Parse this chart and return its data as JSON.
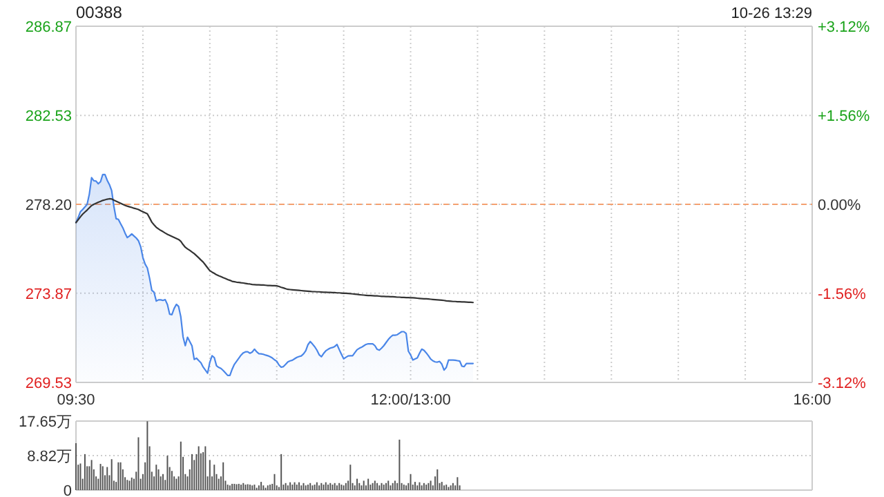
{
  "chart_data": [
    {
      "type": "area",
      "title": "00388",
      "annotations": [
        "10-26 13:29"
      ],
      "categories": [
        "09:30",
        null,
        null,
        null,
        null,
        null,
        null,
        null,
        null,
        null,
        null,
        null,
        null,
        null,
        null,
        null,
        null,
        null,
        null,
        null,
        null,
        null,
        null,
        null,
        null,
        null,
        null,
        null,
        null,
        null,
        null,
        null,
        null,
        null,
        null,
        null,
        null,
        null,
        null,
        null,
        null,
        null,
        null,
        null,
        null,
        null,
        null,
        null,
        null,
        null,
        null,
        null,
        null,
        null,
        null,
        null,
        null,
        null,
        null,
        null,
        null,
        null,
        null,
        null,
        null,
        null,
        null,
        null,
        null,
        null,
        null,
        null,
        null,
        null,
        null,
        null,
        null,
        null,
        null,
        null,
        null,
        null,
        null,
        null,
        null,
        null,
        null,
        null,
        null,
        null,
        null,
        null,
        null,
        null,
        null,
        null,
        null,
        null,
        null,
        null,
        null,
        null,
        null,
        null,
        null,
        null,
        null,
        null,
        null,
        null,
        null,
        null,
        null,
        null,
        null,
        null,
        null,
        null,
        null,
        null,
        null,
        null,
        null,
        null,
        null,
        null,
        null,
        null,
        null,
        null,
        null,
        null,
        null,
        null,
        null,
        null,
        null,
        null,
        null,
        null,
        null,
        null,
        null,
        null,
        null,
        null,
        null,
        null,
        null,
        null,
        "12:00/13:00",
        null,
        null,
        null,
        null,
        null,
        null,
        null,
        null,
        null,
        null,
        null,
        null,
        null,
        null,
        null,
        null,
        null,
        null,
        null,
        null,
        null,
        null,
        null,
        null,
        null,
        null,
        null,
        null,
        null,
        null,
        null,
        null,
        null,
        null,
        null,
        null,
        null,
        null,
        null,
        null,
        null,
        null,
        null,
        null,
        null,
        null,
        null,
        null,
        null,
        null,
        null,
        null,
        null,
        null,
        null,
        null,
        null,
        null,
        null,
        null,
        null,
        null,
        null,
        null,
        null,
        null,
        null,
        null,
        null,
        null,
        null,
        null,
        null,
        null,
        null,
        null,
        null,
        null,
        null,
        null,
        null,
        null,
        null,
        null,
        null,
        null,
        null,
        null,
        null,
        null,
        null,
        null,
        null,
        null,
        null,
        null,
        null,
        null,
        null,
        null,
        null,
        null,
        null,
        null,
        null,
        null,
        null,
        null,
        null,
        null,
        null,
        null,
        null,
        null,
        null,
        null,
        null,
        null,
        null,
        null,
        null,
        null,
        null,
        null,
        null,
        null,
        null,
        null,
        null,
        null,
        null,
        null,
        null,
        null,
        null,
        null,
        null,
        null,
        null,
        null,
        null,
        null,
        null,
        null,
        null,
        null,
        null,
        null,
        null,
        null,
        null,
        null,
        null,
        null,
        null,
        null,
        null,
        null,
        null,
        null,
        null,
        null,
        null,
        null,
        null,
        null,
        null,
        null,
        null,
        null,
        null,
        null,
        null,
        null,
        null,
        null,
        null,
        null,
        null,
        "16:00"
      ],
      "ylim": [
        269.53,
        286.87
      ],
      "yticks": [
        269.53,
        273.87,
        {
          "value": 278.2,
          "label": "278.20"
        },
        282.53,
        286.87
      ],
      "y2lim": [
        -3.12,
        3.12
      ],
      "y2ticks": [
        {
          "value": -3.12,
          "label": "-3.12%"
        },
        {
          "value": -1.56,
          "label": "-1.56%"
        },
        {
          "value": 0,
          "label": "0.00%"
        },
        {
          "value": 1.56,
          "label": "+1.56%"
        },
        {
          "value": 3.12,
          "label": "+3.12%"
        }
      ],
      "grid": true,
      "ref_lines": [
        {
          "axis": "y",
          "value": 278.2,
          "color": "#f4a070",
          "line_style": "dashed"
        }
      ],
      "series": [
        {
          "color": "#4a86e8",
          "values": [
            277.31,
            277.56,
            277.84,
            277.95,
            278.07,
            278.2,
            278.7,
            279.5,
            279.35,
            279.33,
            279.2,
            279.3,
            279.65,
            279.65,
            279.37,
            279.16,
            278.87,
            278.1,
            277.5,
            277.47,
            277.26,
            277.06,
            276.8,
            276.58,
            276.66,
            276.76,
            276.66,
            276.56,
            276.43,
            276.14,
            275.61,
            275.29,
            275.1,
            274.6,
            274.01,
            273.92,
            273.49,
            273.55,
            273.55,
            273.52,
            273.56,
            273.32,
            272.85,
            272.83,
            273.13,
            273.33,
            273.23,
            272.72,
            271.75,
            271.32,
            271.73,
            271.52,
            271.31,
            270.65,
            270.71,
            270.6,
            270.49,
            270.28,
            270.13,
            269.98,
            270.51,
            270.83,
            270.74,
            270.34,
            270.26,
            270.21,
            270.11,
            269.99,
            269.87,
            269.87,
            270.17,
            270.41,
            270.56,
            270.71,
            270.86,
            270.97,
            271.02,
            271.02,
            270.95,
            271.01,
            271.15,
            271.02,
            270.93,
            270.92,
            270.9,
            270.86,
            270.83,
            270.78,
            270.72,
            270.63,
            270.56,
            270.38,
            270.27,
            270.3,
            270.41,
            270.53,
            270.58,
            270.61,
            270.68,
            270.75,
            270.79,
            270.82,
            270.92,
            271.07,
            271.37,
            271.52,
            271.4,
            271.27,
            271.1,
            270.88,
            270.78,
            270.94,
            271.07,
            271.14,
            271.2,
            271.23,
            271.28,
            271.38,
            271.13,
            270.9,
            270.68,
            270.75,
            270.82,
            270.83,
            270.83,
            270.98,
            271.12,
            271.19,
            271.24,
            271.31,
            271.38,
            271.41,
            271.41,
            271.41,
            271.32,
            271.14,
            271.1,
            271.2,
            271.32,
            271.47,
            271.62,
            271.74,
            271.83,
            271.83,
            271.85,
            271.93,
            272.0,
            272.0,
            271.91,
            271.05,
            270.87,
            270.62,
            270.67,
            270.72,
            270.95,
            271.15,
            271.09,
            270.97,
            270.83,
            270.67,
            270.58,
            270.53,
            270.52,
            270.55,
            270.42,
            270.13,
            270.26,
            270.62,
            270.62,
            270.62,
            270.61,
            270.59,
            270.57,
            270.32,
            270.3,
            270.45,
            270.45,
            270.45,
            270.45,
            null,
            null,
            null,
            null,
            null,
            null,
            null,
            null,
            null,
            null,
            null,
            null,
            null,
            null,
            null,
            null,
            null,
            null,
            null,
            null,
            null,
            null,
            null,
            null,
            null,
            null,
            null,
            null,
            null,
            null,
            null,
            null,
            null,
            null,
            null,
            null,
            null,
            null,
            null,
            null,
            null,
            null,
            null,
            null,
            null,
            null,
            null,
            null,
            null,
            null,
            null,
            null,
            null,
            null,
            null,
            null,
            null,
            null,
            null,
            null,
            null,
            null,
            null,
            null,
            null,
            null,
            null,
            null,
            null,
            null,
            null,
            null,
            null,
            null,
            null,
            null,
            null,
            null,
            null,
            null,
            null,
            null,
            null,
            null,
            null,
            null,
            null,
            null,
            null,
            null,
            null,
            null,
            null,
            null,
            null,
            null,
            null,
            null,
            null,
            null,
            null,
            null,
            null,
            null,
            null,
            null,
            null,
            null,
            null,
            null,
            null,
            null,
            null,
            null,
            null,
            null,
            null,
            null,
            null,
            null,
            null,
            null,
            null,
            null,
            null,
            null,
            null,
            null,
            null,
            null,
            null,
            null,
            null,
            null,
            null,
            null,
            null,
            null,
            null,
            null,
            null,
            null,
            null,
            null,
            null,
            null,
            null,
            null,
            null,
            null,
            null,
            null
          ]
        },
        {
          "type": "line",
          "color": "#333333",
          "values": [
            277.31,
            277.45,
            277.59,
            277.72,
            277.82,
            277.92,
            278.03,
            278.14,
            278.2,
            278.25,
            278.3,
            278.34,
            278.39,
            278.42,
            278.45,
            278.47,
            278.46,
            278.4,
            278.35,
            278.3,
            278.25,
            278.2,
            278.15,
            278.11,
            278.08,
            278.05,
            278.01,
            277.98,
            277.95,
            277.89,
            277.84,
            277.79,
            277.74,
            277.54,
            277.33,
            277.2,
            277.08,
            277.0,
            276.93,
            276.87,
            276.8,
            276.74,
            276.69,
            276.64,
            276.59,
            276.54,
            276.49,
            276.4,
            276.24,
            276.11,
            276.03,
            275.96,
            275.88,
            275.8,
            275.7,
            275.6,
            275.49,
            275.39,
            275.25,
            275.11,
            274.97,
            274.9,
            274.84,
            274.77,
            274.72,
            274.68,
            274.63,
            274.59,
            274.54,
            274.5,
            274.45,
            274.43,
            274.41,
            274.4,
            274.38,
            274.37,
            274.35,
            274.33,
            274.32,
            274.3,
            274.29,
            274.28,
            274.28,
            274.27,
            274.27,
            274.26,
            274.25,
            274.25,
            274.24,
            274.24,
            274.23,
            274.2,
            274.16,
            274.13,
            274.09,
            274.06,
            274.05,
            274.04,
            274.03,
            274.02,
            274.01,
            274.0,
            273.99,
            273.98,
            273.97,
            273.96,
            273.95,
            273.95,
            273.94,
            273.94,
            273.93,
            273.92,
            273.92,
            273.91,
            273.91,
            273.9,
            273.9,
            273.89,
            273.89,
            273.88,
            273.87,
            273.87,
            273.86,
            273.85,
            273.84,
            273.83,
            273.82,
            273.8,
            273.79,
            273.78,
            273.77,
            273.76,
            273.76,
            273.75,
            273.74,
            273.74,
            273.73,
            273.72,
            273.72,
            273.71,
            273.71,
            273.7,
            273.7,
            273.69,
            273.68,
            273.68,
            273.67,
            273.67,
            273.66,
            273.66,
            273.65,
            273.65,
            273.64,
            273.63,
            273.62,
            273.61,
            273.6,
            273.6,
            273.59,
            273.58,
            273.57,
            273.56,
            273.55,
            273.54,
            273.53,
            273.52,
            273.5,
            273.49,
            273.48,
            273.47,
            273.47,
            273.46,
            273.46,
            273.45,
            273.45,
            273.44,
            273.43,
            273.43,
            273.42,
            null,
            null,
            null,
            null,
            null,
            null,
            null,
            null,
            null,
            null,
            null,
            null,
            null,
            null,
            null,
            null,
            null,
            null,
            null,
            null,
            null,
            null,
            null,
            null,
            null,
            null,
            null,
            null,
            null,
            null,
            null,
            null,
            null,
            null,
            null,
            null,
            null,
            null,
            null,
            null,
            null,
            null,
            null,
            null,
            null,
            null,
            null,
            null,
            null,
            null,
            null,
            null,
            null,
            null,
            null,
            null,
            null,
            null,
            null,
            null,
            null,
            null,
            null,
            null,
            null,
            null,
            null,
            null,
            null,
            null,
            null,
            null,
            null,
            null,
            null,
            null,
            null,
            null,
            null,
            null,
            null,
            null,
            null,
            null,
            null,
            null,
            null,
            null,
            null,
            null,
            null,
            null,
            null,
            null,
            null,
            null,
            null,
            null,
            null,
            null,
            null,
            null,
            null,
            null,
            null,
            null,
            null,
            null,
            null,
            null,
            null,
            null,
            null,
            null,
            null,
            null,
            null,
            null,
            null,
            null,
            null,
            null,
            null,
            null,
            null,
            null,
            null,
            null,
            null,
            null,
            null,
            null,
            null,
            null,
            null,
            null,
            null,
            null,
            null,
            null,
            null,
            null,
            null,
            null,
            null,
            null,
            null,
            null,
            null,
            null,
            null,
            null
          ]
        }
      ]
    },
    {
      "type": "bar",
      "color": "#555555",
      "ylim": [
        0,
        17.65
      ],
      "yticks": [
        0,
        {
          "value": 8.82,
          "label": "8.82万"
        },
        {
          "value": 17.65,
          "label": "17.65万"
        }
      ],
      "grid": "y",
      "tick_labels": "y",
      "categories": [
        null,
        null,
        null,
        null,
        null,
        null,
        null,
        null,
        null,
        null,
        null,
        null,
        null,
        null,
        null,
        null,
        null,
        null,
        null,
        null,
        null,
        null,
        null,
        null,
        null,
        null,
        null,
        null,
        null,
        null,
        null,
        null,
        null,
        null,
        null,
        null,
        null,
        null,
        null,
        null,
        null,
        null,
        null,
        null,
        null,
        null,
        null,
        null,
        null,
        null,
        null,
        null,
        null,
        null,
        null,
        null,
        null,
        null,
        null,
        null,
        null,
        null,
        null,
        null,
        null,
        null,
        null,
        null,
        null,
        null,
        null,
        null,
        null,
        null,
        null,
        null,
        null,
        null,
        null,
        null,
        null,
        null,
        null,
        null,
        null,
        null,
        null,
        null,
        null,
        null,
        null,
        null,
        null,
        null,
        null,
        null,
        null,
        null,
        null,
        null,
        null,
        null,
        null,
        null,
        null,
        null,
        null,
        null,
        null,
        null,
        null,
        null,
        null,
        null,
        null,
        null,
        null,
        null,
        null,
        null,
        null,
        null,
        null,
        null,
        null,
        null,
        null,
        null,
        null,
        null,
        null,
        null,
        null,
        null,
        null,
        null,
        null,
        null,
        null,
        null,
        null,
        null,
        null,
        null,
        null,
        null,
        null,
        null,
        null,
        null,
        null,
        null,
        null,
        null,
        null,
        null,
        null,
        null,
        null,
        null,
        null,
        null,
        null,
        null,
        null,
        null,
        null,
        null,
        null,
        null,
        null,
        null,
        null,
        null,
        null,
        null,
        null,
        null,
        null,
        null,
        null,
        null,
        null,
        null,
        null,
        null,
        null,
        null,
        null,
        null,
        null,
        null,
        null,
        null,
        null,
        null,
        null,
        null,
        null,
        null,
        null,
        null,
        null,
        null,
        null,
        null,
        null,
        null,
        null,
        null,
        null,
        null,
        null,
        null,
        null,
        null,
        null,
        null,
        null,
        null,
        null,
        null,
        null,
        null,
        null,
        null,
        null,
        null,
        null,
        null,
        null,
        null,
        null,
        null,
        null,
        null,
        null,
        null,
        null,
        null,
        null,
        null,
        null,
        null,
        null,
        null,
        null,
        null,
        null,
        null,
        null,
        null,
        null,
        null,
        null,
        null,
        null,
        null,
        null,
        null,
        null,
        null,
        null,
        null,
        null,
        null,
        null,
        null,
        null,
        null,
        null,
        null,
        null,
        null,
        null,
        null,
        null,
        null,
        null,
        null,
        null,
        null,
        null,
        null,
        null,
        null,
        null,
        null,
        null,
        null,
        null,
        null,
        null,
        null,
        null,
        null,
        null,
        null,
        null,
        null,
        null,
        null,
        null,
        null,
        null,
        null,
        null,
        null,
        null,
        null,
        null,
        null,
        null,
        null,
        null,
        null,
        null,
        null,
        null,
        null,
        null,
        null,
        null,
        null,
        null,
        null,
        null,
        null,
        null,
        null,
        null
      ],
      "values": [
        12.0,
        6.5,
        6.8,
        2.9,
        9.2,
        6.1,
        6.1,
        7.7,
        5.3,
        3.5,
        2.9,
        6.7,
        6.1,
        3.8,
        5.9,
        3.8,
        7.9,
        2.4,
        2.1,
        7.1,
        7.1,
        5.3,
        3.3,
        2.6,
        2.4,
        3.2,
        2.9,
        4.7,
        13.5,
        2.9,
        4.1,
        7.1,
        17.6,
        11.2,
        4.7,
        3.5,
        6.5,
        5.3,
        3.5,
        4.1,
        2.6,
        8.8,
        5.9,
        4.9,
        3.5,
        2.9,
        3.5,
        12.4,
        8.5,
        4.1,
        3.5,
        5.3,
        9.2,
        7.7,
        9.2,
        11.2,
        9.4,
        9.7,
        11.2,
        3.5,
        7.7,
        3.5,
        6.5,
        4.1,
        2.9,
        3.5,
        7.1,
        2.4,
        1.4,
        1.2,
        1.6,
        1.6,
        1.5,
        1.6,
        1.4,
        1.8,
        1.4,
        1.5,
        1.4,
        1.2,
        1.4,
        0.6,
        1.2,
        2.1,
        1.2,
        0.6,
        1.2,
        1.4,
        1.6,
        4.1,
        1.2,
        0.8,
        9.2,
        1.4,
        1.8,
        1.2,
        2.0,
        1.4,
        2.0,
        1.4,
        2.0,
        1.2,
        1.8,
        1.2,
        1.4,
        1.8,
        1.2,
        1.4,
        2.0,
        1.2,
        1.8,
        1.4,
        2.0,
        1.4,
        1.8,
        1.4,
        1.8,
        1.2,
        1.8,
        1.4,
        1.2,
        1.8,
        2.4,
        6.5,
        1.8,
        1.2,
        2.9,
        1.8,
        1.2,
        2.4,
        1.2,
        2.9,
        1.4,
        1.8,
        2.4,
        1.8,
        1.2,
        1.8,
        1.4,
        1.8,
        2.4,
        1.2,
        1.8,
        2.4,
        1.8,
        12.9,
        1.8,
        1.4,
        1.2,
        1.8,
        4.1,
        1.4,
        2.1,
        1.2,
        2.0,
        1.2,
        1.8,
        1.4,
        1.8,
        2.4,
        1.2,
        3.5,
        5.3,
        1.8,
        2.1,
        1.2,
        1.4,
        0.8,
        1.2,
        1.8,
        1.2,
        3.3,
        1.2,
        null,
        null,
        null,
        null,
        null,
        null,
        null,
        null,
        null,
        null,
        null,
        null,
        null,
        null,
        null,
        null,
        null,
        null,
        null,
        null,
        null,
        null,
        null,
        null,
        null,
        null,
        null,
        null,
        null,
        null,
        null,
        null,
        null,
        null,
        null,
        null,
        null,
        null,
        null,
        null,
        null,
        null,
        null,
        null,
        null,
        null,
        null,
        null,
        null,
        null,
        null,
        null,
        null,
        null,
        null,
        null,
        null,
        null,
        null,
        null,
        null,
        null,
        null,
        null,
        null,
        null,
        null,
        null,
        null,
        null,
        null,
        null,
        null,
        null,
        null,
        null,
        null,
        null,
        null,
        null,
        null,
        null,
        null,
        null,
        null,
        null,
        null,
        null,
        null,
        null,
        null,
        null,
        null,
        null,
        null,
        null,
        null,
        null,
        null,
        null,
        null,
        null,
        null,
        null,
        null,
        null,
        null,
        null,
        null,
        null,
        null,
        null,
        null,
        null,
        null,
        null,
        null,
        null,
        null,
        null,
        null,
        null,
        null,
        null,
        null,
        null,
        null,
        null,
        null,
        null,
        null,
        null,
        null,
        null,
        null,
        null,
        null,
        null,
        null,
        null,
        null,
        null,
        null,
        null,
        null,
        null,
        null,
        null,
        null,
        null,
        null,
        null,
        null,
        null,
        null,
        null,
        null,
        null
      ]
    }
  ]
}
